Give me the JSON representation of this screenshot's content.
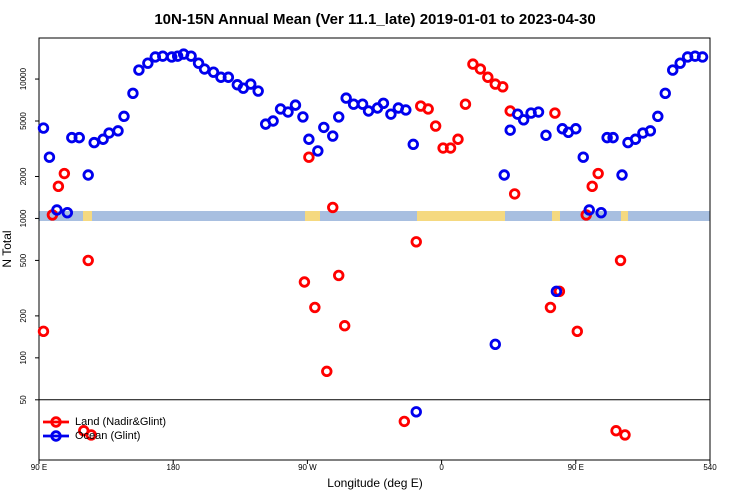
{
  "chart_data": {
    "type": "scatter",
    "title": "10N-15N Annual Mean (Ver 11.1_late)   2019-01-01 to 2023-04-30",
    "x_label": "Longitude (deg E)",
    "y_label": "N Total",
    "log_y": true,
    "legend": "lower left",
    "reference_line": 50,
    "xlim": [
      90,
      540
    ],
    "xticks": [
      {
        "value": 90,
        "label": "90 E"
      },
      180,
      {
        "value": 270,
        "label": "90 W"
      },
      {
        "value": 360,
        "label": "0"
      },
      {
        "value": 450,
        "label": "90 E"
      },
      540
    ],
    "ylim": [
      18.5,
      19700
    ],
    "yticks": [
      50,
      100,
      200,
      500,
      1000,
      2000,
      5000,
      10000
    ],
    "series": [
      {
        "name": "Land (Nadir&Glint)",
        "color": "#ff0000",
        "x": [
          93,
          99,
          103,
          107,
          120,
          123,
          125,
          268,
          271,
          275,
          283,
          287,
          291,
          295,
          335,
          343,
          346,
          351,
          356,
          361,
          366,
          371,
          376,
          381,
          386,
          391,
          396,
          401,
          406,
          409,
          433,
          436,
          439,
          451,
          457,
          461,
          465,
          477,
          480,
          483
        ],
        "values": [
          155,
          1060,
          1700,
          2100,
          30,
          500,
          28,
          350,
          2750,
          230,
          80,
          1200,
          390,
          170,
          35,
          680,
          6400,
          6100,
          4600,
          3200,
          3200,
          3700,
          6600,
          12800,
          11800,
          10300,
          9200,
          8800,
          5900,
          1500,
          230,
          5700,
          300,
          155,
          1060,
          1700,
          2100,
          30,
          500,
          28
        ]
      },
      {
        "name": "Ocean (Glint)",
        "color": "#0000ee",
        "x": [
          93,
          97,
          102,
          109,
          112,
          117,
          123,
          127,
          133,
          137,
          143,
          147,
          153,
          157,
          163,
          168,
          173,
          179,
          183,
          187,
          192,
          197,
          201,
          207,
          212,
          217,
          223,
          227,
          232,
          237,
          242,
          247,
          252,
          257,
          262,
          267,
          271,
          277,
          281,
          287,
          291,
          296,
          301,
          307,
          311,
          317,
          321,
          326,
          331,
          336,
          341,
          343,
          396,
          402,
          406,
          411,
          415,
          420,
          425,
          430,
          437,
          441,
          445,
          450,
          455,
          459,
          467,
          471,
          475,
          481,
          485,
          490,
          495,
          500,
          505,
          510,
          515,
          520,
          525,
          530,
          535
        ],
        "values": [
          4450,
          2750,
          1150,
          1100,
          3800,
          3800,
          2050,
          3500,
          3700,
          4100,
          4250,
          5400,
          7900,
          11600,
          13000,
          14400,
          14600,
          14400,
          14600,
          15100,
          14600,
          13000,
          11800,
          11200,
          10300,
          10300,
          9100,
          8600,
          9200,
          8200,
          4750,
          5000,
          6100,
          5800,
          6500,
          5350,
          3700,
          3050,
          4500,
          3900,
          5350,
          7300,
          6600,
          6600,
          5900,
          6200,
          6700,
          5600,
          6200,
          6000,
          3400,
          41,
          125,
          2050,
          4300,
          5600,
          5100,
          5700,
          5800,
          3950,
          300,
          4400,
          4150,
          4400,
          2750,
          1150,
          1100,
          3800,
          3800,
          2050,
          3500,
          3700,
          4100,
          4250,
          5400,
          7900,
          11600,
          13000,
          14400,
          14600,
          14400
        ]
      }
    ]
  }
}
